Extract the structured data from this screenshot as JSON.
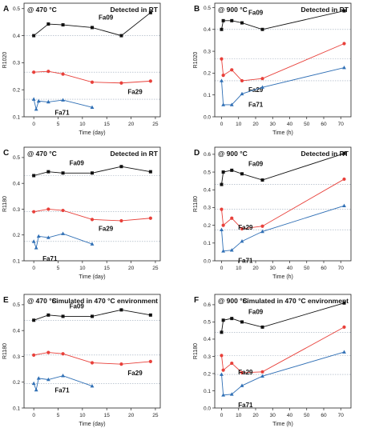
{
  "colors": {
    "Fa09": "#111111",
    "Fa29": "#e8403a",
    "Fa71": "#2f6fb5"
  },
  "chart_data": [
    {
      "type": "line",
      "panel_label": "A",
      "title_left": "@ 470 °C",
      "title_right": "Detected in RT",
      "xlabel": "Time (day)",
      "ylabel": "R1020",
      "xlim": [
        -2,
        26
      ],
      "xticks": [
        0,
        5,
        10,
        15,
        20,
        25
      ],
      "ylim": [
        0.1,
        0.52
      ],
      "yticks": [
        0.1,
        0.2,
        0.3,
        0.4,
        0.5
      ],
      "series": [
        {
          "name": "Fa09",
          "marker": "square",
          "ref": 0.4,
          "x": [
            0,
            3,
            6,
            12,
            18,
            24
          ],
          "y": [
            0.4,
            0.443,
            0.44,
            0.43,
            0.4,
            0.485
          ]
        },
        {
          "name": "Fa29",
          "marker": "circle",
          "ref": 0.265,
          "x": [
            0,
            3,
            6,
            12,
            18,
            24
          ],
          "y": [
            0.265,
            0.268,
            0.258,
            0.228,
            0.225,
            0.232
          ]
        },
        {
          "name": "Fa71",
          "marker": "triangle",
          "ref": 0.165,
          "x": [
            0,
            0.5,
            1,
            3,
            6,
            12
          ],
          "y": [
            0.165,
            0.128,
            0.158,
            0.155,
            0.162,
            0.135
          ]
        }
      ]
    },
    {
      "type": "line",
      "panel_label": "B",
      "title_left": "@ 900 °C",
      "title_right": "Detected in RT",
      "xlabel": "Time (h)",
      "ylabel": "R1020",
      "xlim": [
        -4,
        76
      ],
      "xticks": [
        0,
        10,
        20,
        30,
        40,
        50,
        60,
        70
      ],
      "ylim": [
        0.0,
        0.52
      ],
      "yticks": [
        0.0,
        0.1,
        0.2,
        0.3,
        0.4,
        0.5
      ],
      "series": [
        {
          "name": "Fa09",
          "marker": "square",
          "ref": 0.4,
          "x": [
            0,
            1,
            6,
            12,
            24,
            72
          ],
          "y": [
            0.4,
            0.44,
            0.44,
            0.43,
            0.4,
            0.485
          ]
        },
        {
          "name": "Fa29",
          "marker": "circle",
          "ref": 0.265,
          "x": [
            0,
            1,
            6,
            12,
            24,
            72
          ],
          "y": [
            0.265,
            0.19,
            0.215,
            0.165,
            0.175,
            0.335
          ]
        },
        {
          "name": "Fa71",
          "marker": "triangle",
          "ref": 0.165,
          "x": [
            0,
            1,
            6,
            12,
            24,
            72
          ],
          "y": [
            0.165,
            0.055,
            0.055,
            0.105,
            0.135,
            0.225
          ]
        }
      ]
    },
    {
      "type": "line",
      "panel_label": "C",
      "title_left": "@ 470 °C",
      "title_right": "Detected in RT",
      "xlabel": "Time (day)",
      "ylabel": "R1180",
      "xlim": [
        -2,
        26
      ],
      "xticks": [
        0,
        5,
        10,
        15,
        20,
        25
      ],
      "ylim": [
        0.1,
        0.54
      ],
      "yticks": [
        0.1,
        0.2,
        0.3,
        0.4,
        0.5
      ],
      "series": [
        {
          "name": "Fa09",
          "marker": "square",
          "ref": 0.43,
          "x": [
            0,
            3,
            6,
            12,
            18,
            24
          ],
          "y": [
            0.43,
            0.445,
            0.44,
            0.44,
            0.465,
            0.445
          ]
        },
        {
          "name": "Fa29",
          "marker": "circle",
          "ref": 0.29,
          "x": [
            0,
            3,
            6,
            12,
            18,
            24
          ],
          "y": [
            0.29,
            0.3,
            0.295,
            0.26,
            0.255,
            0.265
          ]
        },
        {
          "name": "Fa71",
          "marker": "triangle",
          "ref": 0.175,
          "x": [
            0,
            0.5,
            1,
            3,
            6,
            12
          ],
          "y": [
            0.175,
            0.15,
            0.195,
            0.19,
            0.205,
            0.165
          ]
        }
      ]
    },
    {
      "type": "line",
      "panel_label": "D",
      "title_left": "@ 900 °C",
      "title_right": "Detected in RT",
      "xlabel": "Time (h)",
      "ylabel": "R1180",
      "xlim": [
        -4,
        76
      ],
      "xticks": [
        0,
        10,
        20,
        30,
        40,
        50,
        60,
        70
      ],
      "ylim": [
        0.0,
        0.64
      ],
      "yticks": [
        0.0,
        0.1,
        0.2,
        0.3,
        0.4,
        0.5,
        0.6
      ],
      "series": [
        {
          "name": "Fa09",
          "marker": "square",
          "ref": 0.43,
          "x": [
            0,
            1,
            6,
            12,
            24,
            72
          ],
          "y": [
            0.43,
            0.5,
            0.51,
            0.49,
            0.455,
            0.605
          ]
        },
        {
          "name": "Fa29",
          "marker": "circle",
          "ref": 0.29,
          "x": [
            0,
            1,
            6,
            12,
            24,
            72
          ],
          "y": [
            0.29,
            0.2,
            0.24,
            0.18,
            0.195,
            0.46
          ]
        },
        {
          "name": "Fa71",
          "marker": "triangle",
          "ref": 0.175,
          "x": [
            0,
            1,
            6,
            12,
            24,
            72
          ],
          "y": [
            0.175,
            0.055,
            0.06,
            0.11,
            0.165,
            0.31
          ]
        }
      ]
    },
    {
      "type": "line",
      "panel_label": "E",
      "title_left": "@ 470 °C",
      "title_right": "Simulated in 470 °C environment",
      "xlabel": "Time (day)",
      "ylabel": "R1180",
      "xlim": [
        -2,
        26
      ],
      "xticks": [
        0,
        5,
        10,
        15,
        20,
        25
      ],
      "ylim": [
        0.1,
        0.54
      ],
      "yticks": [
        0.1,
        0.2,
        0.3,
        0.4,
        0.5
      ],
      "series": [
        {
          "name": "Fa09",
          "marker": "square",
          "ref": 0.44,
          "x": [
            0,
            3,
            6,
            12,
            18,
            24
          ],
          "y": [
            0.44,
            0.46,
            0.455,
            0.455,
            0.48,
            0.46
          ]
        },
        {
          "name": "Fa29",
          "marker": "circle",
          "ref": 0.305,
          "x": [
            0,
            3,
            6,
            12,
            18,
            24
          ],
          "y": [
            0.305,
            0.315,
            0.31,
            0.275,
            0.27,
            0.28
          ]
        },
        {
          "name": "Fa71",
          "marker": "triangle",
          "ref": 0.195,
          "x": [
            0,
            0.5,
            1,
            3,
            6,
            12
          ],
          "y": [
            0.195,
            0.17,
            0.215,
            0.21,
            0.225,
            0.185
          ]
        }
      ]
    },
    {
      "type": "line",
      "panel_label": "F",
      "title_left": "@ 900 °C",
      "title_right": "Simulated in 470 °C environment",
      "xlabel": "Time (h)",
      "ylabel": "R1180",
      "xlim": [
        -4,
        76
      ],
      "xticks": [
        0,
        10,
        20,
        30,
        40,
        50,
        60,
        70
      ],
      "ylim": [
        0.0,
        0.66
      ],
      "yticks": [
        0.0,
        0.1,
        0.2,
        0.3,
        0.4,
        0.5,
        0.6
      ],
      "series": [
        {
          "name": "Fa09",
          "marker": "square",
          "ref": 0.44,
          "x": [
            0,
            1,
            6,
            12,
            24,
            72
          ],
          "y": [
            0.44,
            0.51,
            0.52,
            0.5,
            0.47,
            0.61
          ]
        },
        {
          "name": "Fa29",
          "marker": "circle",
          "ref": 0.305,
          "x": [
            0,
            1,
            6,
            12,
            24,
            72
          ],
          "y": [
            0.305,
            0.22,
            0.26,
            0.205,
            0.21,
            0.47
          ]
        },
        {
          "name": "Fa71",
          "marker": "triangle",
          "ref": 0.195,
          "x": [
            0,
            1,
            6,
            12,
            24,
            72
          ],
          "y": [
            0.195,
            0.075,
            0.08,
            0.13,
            0.185,
            0.325
          ]
        }
      ]
    }
  ]
}
